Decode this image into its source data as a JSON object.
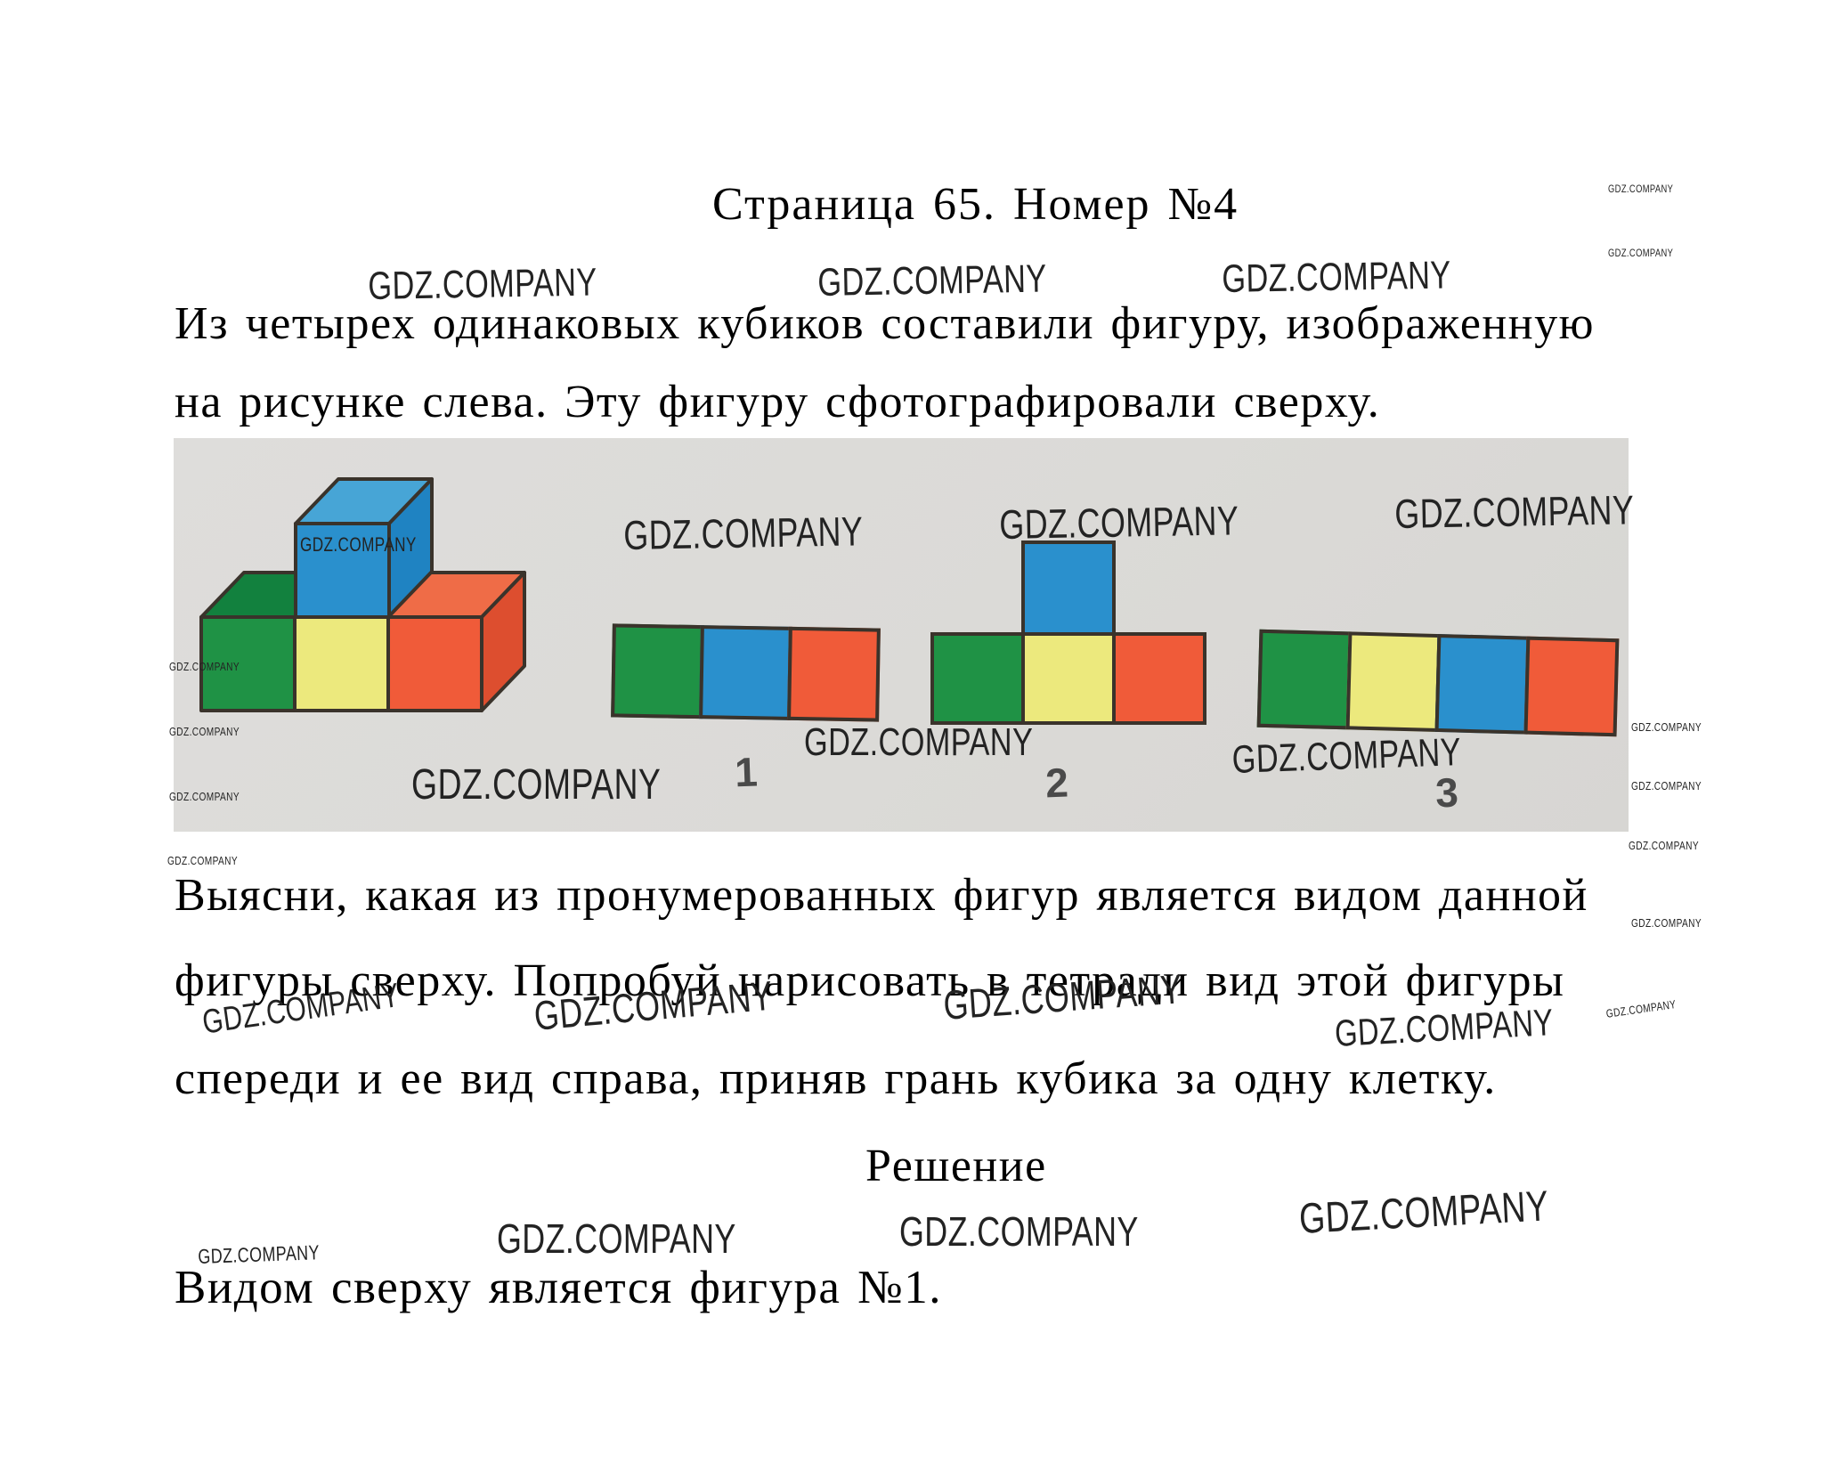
{
  "watermark": {
    "text": "GDZ.COMPANY"
  },
  "header": {
    "title": "Страница 65. Номер №4"
  },
  "problem": {
    "line1": "Из четырех одинаковых кубиков составили фигуру, изображенную",
    "line2": "на рисунке слева. Эту фигуру сфотографировали сверху.",
    "line3": "Выясни, какая из пронумерованных фигур является видом данной",
    "line4": "фигуры сверху. Попробуй нарисовать в тетради вид этой фигуры",
    "line5": "спереди и ее вид справа, приняв грань кубика за одну клетку."
  },
  "solution": {
    "heading": "Решение",
    "answer": "Видом сверху является фигура №1."
  },
  "palette": {
    "photo_bg": "#dcdbd8",
    "outline": "#3a332b",
    "green": "#1f9245",
    "green_top": "#12813e",
    "yellow": "#ece97d",
    "blue": "#2a90cd",
    "blue_top": "#47a5d6",
    "blue_side": "#1f83c2",
    "orange": "#f05b39",
    "orange_top": "#ef6c47",
    "orange_side": "#dd4e2f",
    "label_color": "#4a4a4a"
  },
  "cube_figure": {
    "description": "Фигура из четырёх кубиков: нижний ряд — зелёный, жёлтый, оранжевый; синий кубик сверху на жёлтом",
    "cubes": [
      {
        "color": "green",
        "position": "bottom-left"
      },
      {
        "color": "yellow",
        "position": "bottom-middle"
      },
      {
        "color": "orange",
        "position": "bottom-right"
      },
      {
        "color": "blue",
        "position": "top-middle"
      }
    ]
  },
  "figures": [
    {
      "label": "1",
      "squares": [
        "green",
        "blue",
        "orange"
      ]
    },
    {
      "label": "2",
      "squares": [
        "green",
        "yellow",
        "orange"
      ],
      "top": "blue",
      "top_index": 1
    },
    {
      "label": "3",
      "squares": [
        "green",
        "yellow",
        "blue",
        "orange"
      ]
    }
  ]
}
